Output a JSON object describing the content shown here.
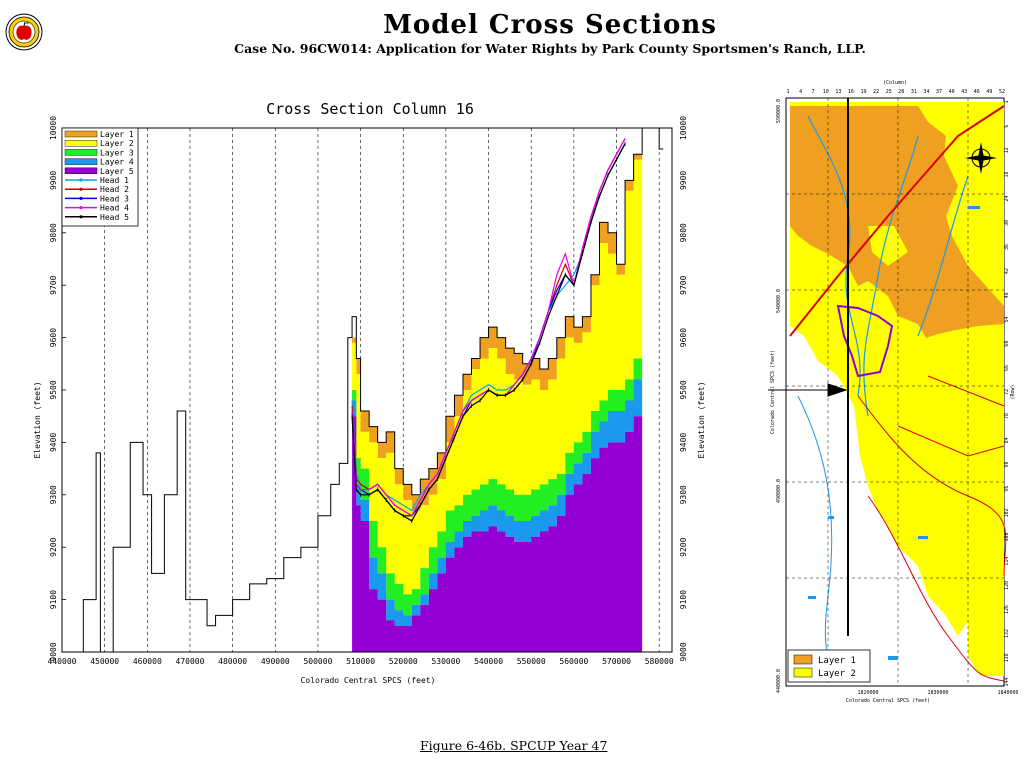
{
  "header": {
    "title": "Model Cross Sections",
    "subtitle": "Case No. 96CW014: Application for Water Rights by Park County Sportsmen's Ranch, LLP."
  },
  "caption": "Figure 6-46b.  SPCUP Year 47",
  "chart_data": [
    {
      "type": "area",
      "title": "Cross Section Column 16",
      "xlabel": "Colorado Central SPCS (feet)",
      "ylabel": "Elevation (feet)",
      "xlim": [
        440000,
        583000
      ],
      "ylim": [
        9000,
        10000
      ],
      "x_ticks": [
        "440000",
        "450000",
        "460000",
        "470000",
        "480000",
        "490000",
        "500000",
        "510000",
        "520000",
        "530000",
        "540000",
        "550000",
        "560000",
        "570000",
        "580000"
      ],
      "y_ticks": [
        "9000",
        "9100",
        "9200",
        "9300",
        "9400",
        "9500",
        "9600",
        "9700",
        "9800",
        "9900",
        "10000"
      ],
      "grid": "vertical dashed",
      "legend_position": "top-left",
      "colors": {
        "layer1": "#f0a020",
        "layer2": "#ffff00",
        "layer3": "#22ee22",
        "layer4": "#1a9aee",
        "layer5": "#9400d3",
        "head1": "#00aadd",
        "head2": "#cc0000",
        "head3": "#0000ee",
        "head4": "#ee00ee",
        "head5": "#000000"
      },
      "legend": [
        {
          "name": "Layer  1",
          "key": "layer1",
          "kind": "fill"
        },
        {
          "name": "Layer  2",
          "key": "layer2",
          "kind": "fill"
        },
        {
          "name": "Layer  3",
          "key": "layer3",
          "kind": "fill"
        },
        {
          "name": "Layer  4",
          "key": "layer4",
          "kind": "fill"
        },
        {
          "name": "Layer  5",
          "key": "layer5",
          "kind": "fill"
        },
        {
          "name": "Head  1",
          "key": "head1",
          "kind": "line"
        },
        {
          "name": "Head  2",
          "key": "head2",
          "kind": "line"
        },
        {
          "name": "Head  3",
          "key": "head3",
          "kind": "line"
        },
        {
          "name": "Head  4",
          "key": "head4",
          "kind": "line"
        },
        {
          "name": "Head  5",
          "key": "head5",
          "kind": "line"
        }
      ],
      "x": [
        441000,
        445000,
        448000,
        449000,
        452000,
        456000,
        459000,
        461000,
        464000,
        467000,
        469000,
        471000,
        474000,
        476000,
        480000,
        484000,
        488000,
        492000,
        496000,
        500000,
        503000,
        505000,
        507000,
        508000,
        509000,
        510000,
        512000,
        514000,
        516000,
        518000,
        520000,
        522000,
        524000,
        526000,
        528000,
        530000,
        532000,
        534000,
        536000,
        538000,
        540000,
        542000,
        544000,
        546000,
        548000,
        550000,
        552000,
        554000,
        556000,
        558000,
        560000,
        562000,
        564000,
        566000,
        568000,
        570000,
        572000,
        574000,
        576000,
        578000,
        580000
      ],
      "ground_surface": [
        9000,
        9100,
        9380,
        9000,
        9200,
        9400,
        9300,
        9150,
        9300,
        9460,
        9100,
        9100,
        9050,
        9070,
        9100,
        9130,
        9140,
        9180,
        9200,
        9260,
        9320,
        9360,
        9600,
        9640,
        9560,
        9460,
        9430,
        9400,
        9420,
        9350,
        9320,
        9300,
        9330,
        9350,
        9380,
        9450,
        9490,
        9530,
        9560,
        9600,
        9620,
        9600,
        9580,
        9570,
        9550,
        9560,
        9540,
        9560,
        9600,
        9640,
        9620,
        9640,
        9720,
        9820,
        9800,
        9740,
        9900,
        9950,
        10000,
        10000,
        9960
      ],
      "model_series": [
        {
          "name": "Layer 1 top",
          "key": "layer1",
          "values": [
            null,
            null,
            null,
            null,
            null,
            null,
            null,
            null,
            null,
            null,
            null,
            null,
            null,
            null,
            null,
            null,
            null,
            null,
            null,
            null,
            null,
            null,
            null,
            9600,
            9560,
            9460,
            9430,
            9400,
            9420,
            9350,
            9320,
            9300,
            9330,
            9350,
            9380,
            9450,
            9490,
            9530,
            9560,
            9600,
            9620,
            9600,
            9580,
            9570,
            9550,
            9560,
            9540,
            9560,
            9600,
            9640,
            9620,
            9640,
            9720,
            9820,
            9800,
            9740,
            9900,
            9950,
            10000,
            10000,
            9960
          ]
        },
        {
          "name": "Layer 2 top",
          "key": "layer2",
          "values": [
            null,
            null,
            null,
            null,
            null,
            null,
            null,
            null,
            null,
            null,
            null,
            null,
            null,
            null,
            null,
            null,
            null,
            null,
            null,
            null,
            null,
            null,
            null,
            9590,
            9530,
            9420,
            9400,
            9370,
            9380,
            9320,
            9290,
            9270,
            9280,
            9300,
            9330,
            9400,
            9450,
            9500,
            9540,
            9560,
            9580,
            9560,
            9530,
            9520,
            9510,
            9520,
            9500,
            9520,
            9560,
            9600,
            9590,
            9610,
            9700,
            9780,
            9760,
            9720,
            9880,
            9940,
            10000,
            10000,
            9960
          ]
        },
        {
          "name": "Layer 3 top",
          "key": "layer3",
          "values": [
            null,
            null,
            null,
            null,
            null,
            null,
            null,
            null,
            null,
            null,
            null,
            null,
            null,
            null,
            null,
            null,
            null,
            null,
            null,
            null,
            null,
            null,
            null,
            9500,
            9370,
            9350,
            9250,
            9200,
            9150,
            9130,
            9110,
            9120,
            9160,
            9200,
            9230,
            9270,
            9280,
            9300,
            9310,
            9320,
            9330,
            9320,
            9310,
            9300,
            9300,
            9310,
            9320,
            9330,
            9340,
            9380,
            9400,
            9420,
            9460,
            9480,
            9500,
            9500,
            9520,
            9560,
            null,
            null,
            null
          ]
        },
        {
          "name": "Layer 4 top",
          "key": "layer4",
          "values": [
            null,
            null,
            null,
            null,
            null,
            null,
            null,
            null,
            null,
            null,
            null,
            null,
            null,
            null,
            null,
            null,
            null,
            null,
            null,
            null,
            null,
            null,
            null,
            9480,
            9320,
            9290,
            9180,
            9150,
            9100,
            9080,
            9070,
            9090,
            9110,
            9150,
            9180,
            9210,
            9230,
            9250,
            9260,
            9270,
            9280,
            9270,
            9260,
            9250,
            9250,
            9260,
            9270,
            9280,
            9300,
            9340,
            9360,
            9380,
            9420,
            9440,
            9460,
            9460,
            9480,
            9520,
            null,
            null,
            null
          ]
        },
        {
          "name": "Layer 5 top",
          "key": "layer5",
          "values": [
            null,
            null,
            null,
            null,
            null,
            null,
            null,
            null,
            null,
            null,
            null,
            null,
            null,
            null,
            null,
            null,
            null,
            null,
            null,
            null,
            null,
            null,
            null,
            9450,
            9280,
            9250,
            9120,
            9100,
            9060,
            9050,
            9050,
            9070,
            9090,
            9120,
            9150,
            9180,
            9200,
            9220,
            9230,
            9230,
            9240,
            9230,
            9220,
            9210,
            9210,
            9220,
            9230,
            9240,
            9260,
            9300,
            9320,
            9340,
            9370,
            9390,
            9400,
            9400,
            9420,
            9450,
            null,
            null,
            null
          ]
        },
        {
          "name": "Model bottom",
          "key": "bottom",
          "values": [
            null,
            null,
            null,
            null,
            null,
            null,
            null,
            null,
            null,
            null,
            null,
            null,
            null,
            null,
            null,
            null,
            null,
            null,
            null,
            null,
            null,
            null,
            null,
            9000,
            9000,
            9000,
            9000,
            9000,
            9000,
            9000,
            9000,
            9000,
            9000,
            9000,
            9000,
            9000,
            9000,
            9000,
            9000,
            9000,
            9000,
            9000,
            9000,
            9000,
            9000,
            9000,
            9000,
            9000,
            9000,
            9000,
            9000,
            9000,
            9000,
            9000,
            9000,
            9000,
            9000,
            9000,
            null,
            null,
            null
          ]
        },
        {
          "name": "Head 1",
          "key": "head1",
          "values": [
            null,
            null,
            null,
            null,
            null,
            null,
            null,
            null,
            null,
            null,
            null,
            null,
            null,
            null,
            null,
            null,
            null,
            null,
            null,
            null,
            null,
            null,
            null,
            9480,
            9340,
            9320,
            9310,
            9320,
            9300,
            9290,
            9280,
            9270,
            9300,
            9320,
            9340,
            9380,
            9420,
            9460,
            9490,
            9500,
            9510,
            9500,
            9500,
            9510,
            9530,
            9560,
            9600,
            9650,
            9680,
            9700,
            9720,
            9760,
            9820,
            9880,
            9920,
            9950,
            9980,
            null,
            null,
            null,
            null
          ]
        },
        {
          "name": "Head 2",
          "key": "head2",
          "values": [
            null,
            null,
            null,
            null,
            null,
            null,
            null,
            null,
            null,
            null,
            null,
            null,
            null,
            null,
            null,
            null,
            null,
            null,
            null,
            null,
            null,
            null,
            null,
            9470,
            9330,
            9320,
            9310,
            9320,
            9300,
            9280,
            9270,
            9260,
            9290,
            9320,
            9340,
            9380,
            9420,
            9460,
            9480,
            9490,
            9500,
            9490,
            9490,
            9510,
            9530,
            9560,
            9600,
            9650,
            9700,
            9740,
            9700,
            9770,
            9830,
            9880,
            9920,
            9950,
            9980,
            null,
            null,
            null,
            null
          ]
        },
        {
          "name": "Head 3",
          "key": "head3",
          "values": [
            null,
            null,
            null,
            null,
            null,
            null,
            null,
            null,
            null,
            null,
            null,
            null,
            null,
            null,
            null,
            null,
            null,
            null,
            null,
            null,
            null,
            null,
            null,
            9460,
            9320,
            9310,
            9300,
            9310,
            9290,
            9270,
            9260,
            9260,
            9280,
            9310,
            9330,
            9370,
            9410,
            9450,
            9480,
            9490,
            9500,
            9490,
            9490,
            9500,
            9520,
            9550,
            9600,
            9650,
            9690,
            9720,
            9700,
            9760,
            9820,
            9870,
            9910,
            9940,
            9970,
            null,
            null,
            null,
            null
          ]
        },
        {
          "name": "Head 4",
          "key": "head4",
          "values": [
            null,
            null,
            null,
            null,
            null,
            null,
            null,
            null,
            null,
            null,
            null,
            null,
            null,
            null,
            null,
            null,
            null,
            null,
            null,
            null,
            null,
            null,
            null,
            9460,
            9320,
            9310,
            9310,
            9320,
            9300,
            9280,
            9270,
            9260,
            9290,
            9320,
            9340,
            9380,
            9420,
            9460,
            9480,
            9490,
            9500,
            9490,
            9490,
            9510,
            9530,
            9560,
            9600,
            9650,
            9720,
            9760,
            9700,
            9770,
            9830,
            9880,
            9920,
            9950,
            9980,
            null,
            null,
            null,
            null
          ]
        },
        {
          "name": "Head 5",
          "key": "head5",
          "values": [
            null,
            null,
            null,
            null,
            null,
            null,
            null,
            null,
            null,
            null,
            null,
            null,
            null,
            null,
            null,
            null,
            null,
            null,
            null,
            null,
            null,
            null,
            null,
            9450,
            9310,
            9300,
            9300,
            9310,
            9290,
            9270,
            9260,
            9250,
            9280,
            9310,
            9330,
            9370,
            9410,
            9450,
            9470,
            9480,
            9500,
            9490,
            9490,
            9500,
            9520,
            9550,
            9590,
            9640,
            9680,
            9720,
            9700,
            9760,
            9820,
            9870,
            9910,
            9940,
            9970,
            null,
            null,
            null,
            null
          ]
        }
      ]
    },
    {
      "type": "map",
      "xlabel": "Colorado Central SPCS (feet)",
      "ylabel": "Colorado Central SPCS (feet)",
      "top_label": "(Column)",
      "right_label": "(Row)",
      "x_ticks": [
        "1820000",
        "1830000",
        "1840000"
      ],
      "y_ticks": [
        "440000.0",
        "490000.0",
        "540000.0",
        "590000.0"
      ],
      "column_ticks": [
        "1",
        "4",
        "7",
        "10",
        "13",
        "16",
        "19",
        "22",
        "25",
        "28",
        "31",
        "34",
        "37",
        "40",
        "43",
        "46",
        "49",
        "52"
      ],
      "row_ticks": [
        "1",
        "6",
        "12",
        "18",
        "24",
        "30",
        "36",
        "42",
        "48",
        "54",
        "60",
        "66",
        "72",
        "78",
        "84",
        "90",
        "96",
        "102",
        "108",
        "114",
        "120",
        "126",
        "132",
        "138",
        "144"
      ],
      "legend": [
        {
          "name": "Layer  1",
          "key": "layer1"
        },
        {
          "name": "Layer  2",
          "key": "layer2"
        }
      ]
    }
  ]
}
